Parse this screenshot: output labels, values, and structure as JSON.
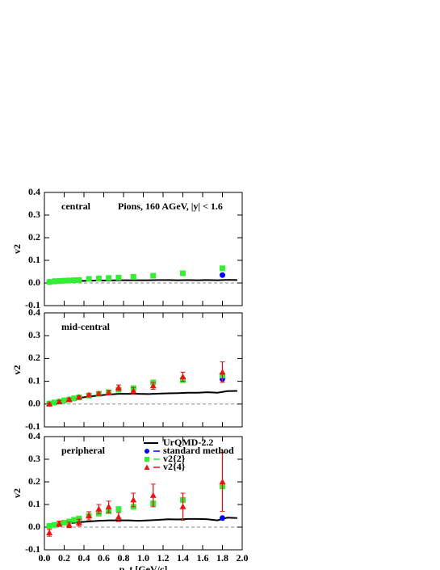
{
  "chart_data": [
    {
      "type": "scatter",
      "annotation": "central",
      "title": "Pions, 160 AGeV, |y| < 1.6",
      "ylabel": "v2",
      "xlim": [
        0,
        2
      ],
      "ylim": [
        -0.1,
        0.4
      ],
      "yticks": [
        -0.1,
        {
          "value": 0,
          "label": "0.0"
        },
        0.1,
        0.2,
        0.3,
        0.4
      ],
      "series": [
        {
          "color": "#000000",
          "marker": "line",
          "x": [
            0.05,
            0.15,
            0.25,
            0.35,
            0.45,
            0.55,
            0.65,
            0.75,
            0.85,
            0.95,
            1.05,
            1.15,
            1.25,
            1.35,
            1.45,
            1.55,
            1.65,
            1.75,
            1.85,
            1.95
          ],
          "values": [
            0.003,
            0.006,
            0.008,
            0.009,
            0.01,
            0.011,
            0.011,
            0.012,
            0.012,
            0.012,
            0.012,
            0.013,
            0.013,
            0.012,
            0.013,
            0.012,
            0.013,
            0.012,
            0.014,
            0.013
          ]
        },
        {
          "color": "#0000ff",
          "marker": "circle",
          "x": [
            0.05,
            0.1,
            0.15,
            0.2,
            0.25,
            0.3,
            0.35,
            1.8
          ],
          "values": [
            0.005,
            0.008,
            0.009,
            0.01,
            0.011,
            0.012,
            0.013,
            0.035
          ]
        },
        {
          "color": "#33ee33",
          "marker": "square",
          "x": [
            0.05,
            0.1,
            0.15,
            0.2,
            0.25,
            0.3,
            0.35,
            0.45,
            0.55,
            0.65,
            0.75,
            0.9,
            1.1,
            1.4,
            1.8
          ],
          "values": [
            0.004,
            0.007,
            0.009,
            0.01,
            0.011,
            0.012,
            0.013,
            0.018,
            0.02,
            0.022,
            0.024,
            0.027,
            0.032,
            0.043,
            0.065
          ]
        }
      ]
    },
    {
      "type": "scatter",
      "annotation": "mid-central",
      "ylabel": "v2",
      "xlim": [
        0,
        2
      ],
      "ylim": [
        -0.1,
        0.4
      ],
      "yticks": [
        -0.1,
        {
          "value": 0,
          "label": "0.0"
        },
        0.1,
        0.2,
        0.3,
        0.4
      ],
      "series": [
        {
          "color": "#000000",
          "marker": "line",
          "x": [
            0.05,
            0.15,
            0.25,
            0.35,
            0.45,
            0.55,
            0.65,
            0.75,
            0.85,
            0.95,
            1.05,
            1.15,
            1.25,
            1.35,
            1.45,
            1.55,
            1.65,
            1.75,
            1.85,
            1.95
          ],
          "values": [
            0.003,
            0.012,
            0.02,
            0.027,
            0.033,
            0.038,
            0.042,
            0.045,
            0.045,
            0.045,
            0.044,
            0.046,
            0.047,
            0.048,
            0.05,
            0.05,
            0.052,
            0.05,
            0.057,
            0.058
          ]
        },
        {
          "color": "#0000ff",
          "marker": "circle",
          "x": [
            0.05,
            0.1,
            0.15,
            0.2,
            0.25,
            0.3,
            0.35,
            1.1,
            1.8
          ],
          "values": [
            0.003,
            0.007,
            0.011,
            0.016,
            0.02,
            0.025,
            0.03,
            0.095,
            0.11
          ]
        },
        {
          "color": "#33ee33",
          "marker": "square",
          "x": [
            0.05,
            0.1,
            0.15,
            0.2,
            0.25,
            0.3,
            0.35,
            0.45,
            0.55,
            0.65,
            0.75,
            0.9,
            1.1,
            1.4,
            1.8
          ],
          "values": [
            0.002,
            0.007,
            0.011,
            0.016,
            0.02,
            0.025,
            0.03,
            0.037,
            0.045,
            0.052,
            0.063,
            0.07,
            0.095,
            0.105,
            0.125
          ]
        },
        {
          "color": "#ee1111",
          "marker": "triangle",
          "x": [
            0.05,
            0.15,
            0.25,
            0.35,
            0.45,
            0.55,
            0.65,
            0.75,
            0.9,
            1.1,
            1.4,
            1.8
          ],
          "values": [
            0.0,
            0.01,
            0.02,
            0.03,
            0.04,
            0.045,
            0.05,
            0.072,
            0.058,
            0.08,
            0.12,
            0.14
          ],
          "errors": [
            0.005,
            0.005,
            0.005,
            0.005,
            0.006,
            0.008,
            0.01,
            0.012,
            0.015,
            0.015,
            0.02,
            0.045
          ]
        }
      ]
    },
    {
      "type": "scatter",
      "annotation": "peripheral",
      "ylabel": "v2",
      "xlabel": "p_t [GeV/c]",
      "legend": "upper right",
      "xlim": [
        0,
        2
      ],
      "ylim": [
        -0.1,
        0.4
      ],
      "yticks": [
        -0.1,
        {
          "value": 0,
          "label": "0.0"
        },
        0.1,
        0.2,
        0.3,
        0.4
      ],
      "xticks": [
        {
          "value": 0,
          "label": "0.0"
        },
        0.2,
        0.4,
        0.6,
        0.8,
        {
          "value": 1,
          "label": "1.0"
        },
        1.2,
        1.4,
        1.6,
        1.8,
        {
          "value": 2,
          "label": "2.0"
        }
      ],
      "series": [
        {
          "name": "UrQMD-2.2",
          "color": "#000000",
          "marker": "line",
          "x": [
            0.05,
            0.15,
            0.25,
            0.35,
            0.45,
            0.55,
            0.65,
            0.75,
            0.85,
            0.95,
            1.05,
            1.15,
            1.25,
            1.35,
            1.45,
            1.55,
            1.65,
            1.75,
            1.85,
            1.95
          ],
          "values": [
            0.003,
            0.01,
            0.017,
            0.022,
            0.025,
            0.028,
            0.03,
            0.03,
            0.03,
            0.028,
            0.03,
            0.032,
            0.035,
            0.034,
            0.036,
            0.036,
            0.035,
            0.03,
            0.042,
            0.04
          ]
        },
        {
          "name": "standard method",
          "color": "#0000ff",
          "marker": "circle",
          "x": [
            0.05,
            0.1,
            0.15,
            0.2,
            0.25,
            0.3,
            0.35,
            1.8
          ],
          "values": [
            0.005,
            0.01,
            0.015,
            0.02,
            0.025,
            0.03,
            0.035,
            0.04
          ]
        },
        {
          "name": "v2{2}",
          "color": "#33ee33",
          "marker": "square",
          "x": [
            0.05,
            0.1,
            0.15,
            0.2,
            0.25,
            0.3,
            0.35,
            0.45,
            0.55,
            0.65,
            0.75,
            0.9,
            1.1,
            1.4,
            1.8
          ],
          "values": [
            0.005,
            0.01,
            0.015,
            0.02,
            0.025,
            0.032,
            0.038,
            0.05,
            0.06,
            0.07,
            0.08,
            0.09,
            0.105,
            0.12,
            0.18
          ]
        },
        {
          "name": "v2{4}",
          "color": "#ee1111",
          "marker": "triangle",
          "x": [
            0.05,
            0.15,
            0.25,
            0.35,
            0.45,
            0.55,
            0.65,
            0.75,
            0.9,
            1.1,
            1.4,
            1.8
          ],
          "values": [
            -0.025,
            0.015,
            0.01,
            0.02,
            0.05,
            0.08,
            0.09,
            0.045,
            0.12,
            0.14,
            0.09,
            0.2
          ],
          "errors": [
            0.015,
            0.012,
            0.012,
            0.015,
            0.018,
            0.02,
            0.025,
            0.02,
            0.03,
            0.05,
            0.06,
            0.13
          ]
        }
      ]
    }
  ]
}
